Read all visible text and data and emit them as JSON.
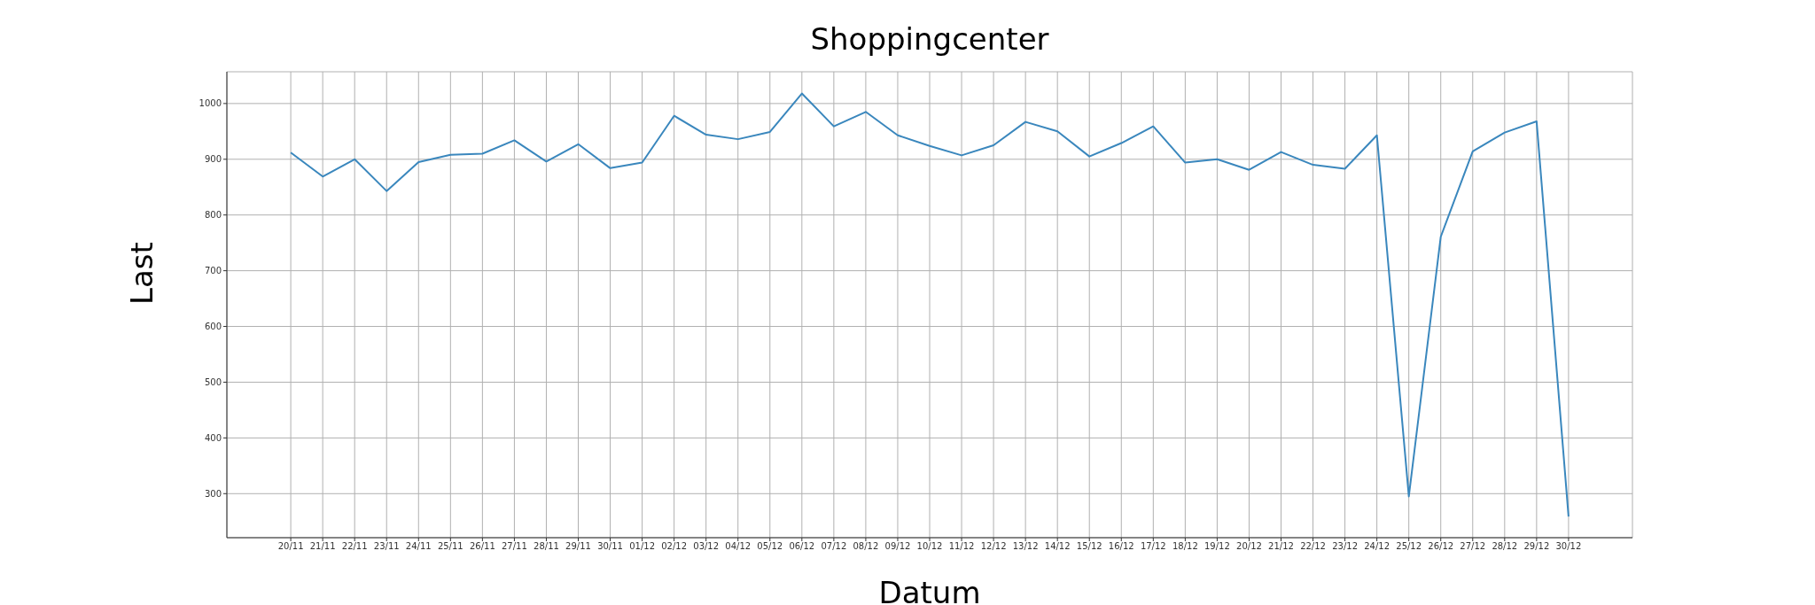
{
  "chart_data": {
    "type": "line",
    "title": "Shoppingcenter",
    "xlabel": "Datum",
    "ylabel": "Last",
    "categories": [
      "20/11",
      "21/11",
      "22/11",
      "23/11",
      "24/11",
      "25/11",
      "26/11",
      "27/11",
      "28/11",
      "29/11",
      "30/11",
      "01/12",
      "02/12",
      "03/12",
      "04/12",
      "05/12",
      "06/12",
      "07/12",
      "08/12",
      "09/12",
      "10/12",
      "11/12",
      "12/12",
      "13/12",
      "14/12",
      "15/12",
      "16/12",
      "17/12",
      "18/12",
      "19/12",
      "20/12",
      "21/12",
      "22/12",
      "23/12",
      "24/12",
      "25/12",
      "26/12",
      "27/12",
      "28/12",
      "29/12",
      "30/12"
    ],
    "series": [
      {
        "color": "#3a87bd",
        "values": [
          912,
          869,
          900,
          843,
          895,
          908,
          910,
          934,
          896,
          927,
          884,
          894,
          978,
          944,
          936,
          949,
          1018,
          959,
          985,
          943,
          924,
          907,
          925,
          967,
          950,
          905,
          929,
          959,
          894,
          900,
          881,
          913,
          890,
          883,
          943,
          295,
          761,
          914,
          948,
          968,
          259
        ]
      }
    ],
    "ylim": [
      221,
      1057
    ],
    "yticks": [
      300,
      400,
      500,
      600,
      700,
      800,
      900,
      1000
    ],
    "grid": true,
    "marker": "none",
    "line_style": "solid"
  }
}
